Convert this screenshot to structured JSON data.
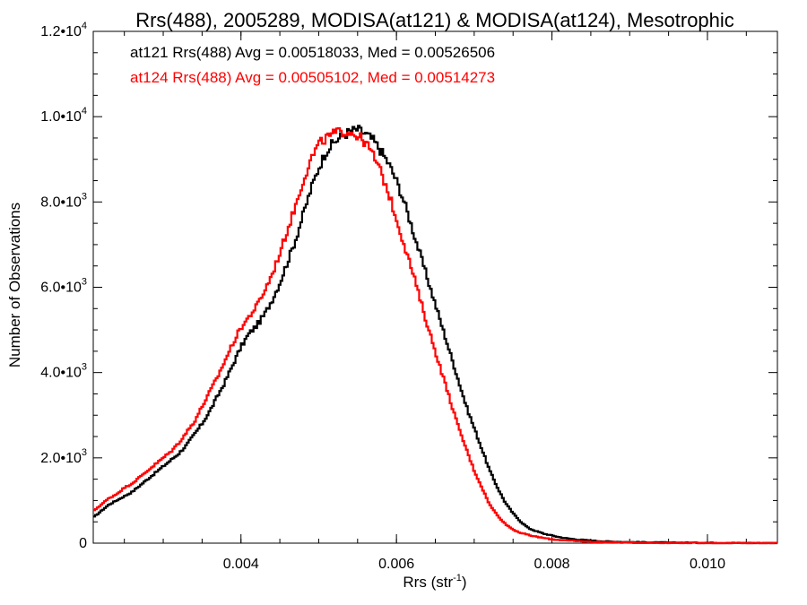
{
  "chart_data": {
    "type": "line",
    "title": "Rrs(488), 2005289, MODISA(at121) & MODISA(at124), Mesotrophic",
    "xlabel": "Rrs (str",
    "xlabel_sup": "-1",
    "xlabel_end": ")",
    "ylabel": "Number of Observations",
    "xlim": [
      0.0021,
      0.0109
    ],
    "ylim": [
      0,
      12000
    ],
    "xticks": [
      {
        "value": 0.004,
        "label": "0.004"
      },
      {
        "value": 0.006,
        "label": "0.006"
      },
      {
        "value": 0.008,
        "label": "0.008"
      },
      {
        "value": 0.01,
        "label": "0.010"
      }
    ],
    "yticks": [
      {
        "value": 0,
        "mant": "0",
        "exp": ""
      },
      {
        "value": 2000,
        "mant": "2.0•10",
        "exp": "3"
      },
      {
        "value": 4000,
        "mant": "4.0•10",
        "exp": "3"
      },
      {
        "value": 6000,
        "mant": "6.0•10",
        "exp": "3"
      },
      {
        "value": 8000,
        "mant": "8.0•10",
        "exp": "3"
      },
      {
        "value": 10000,
        "mant": "1.0•10",
        "exp": "4"
      },
      {
        "value": 12000,
        "mant": "1.2•10",
        "exp": "4"
      }
    ],
    "annotations": [
      "at121 Rrs(488) Avg = 0.00518033, Med = 0.00526506",
      "at124 Rrs(488) Avg = 0.00505102, Med = 0.00514273"
    ],
    "colors": {
      "at121": "#000000",
      "at124": "#ff0000"
    },
    "series": [
      {
        "color": "#000000",
        "x": [
          0.0021,
          0.0022,
          0.0023,
          0.0024,
          0.0025,
          0.0026,
          0.0027,
          0.0028,
          0.0029,
          0.003,
          0.0031,
          0.0032,
          0.0033,
          0.0034,
          0.0035,
          0.0036,
          0.0037,
          0.0038,
          0.0039,
          0.004,
          0.0041,
          0.0042,
          0.0043,
          0.0044,
          0.0045,
          0.0046,
          0.0047,
          0.0048,
          0.0049,
          0.005,
          0.0051,
          0.0052,
          0.0053,
          0.0054,
          0.0055,
          0.0056,
          0.0057,
          0.0058,
          0.0059,
          0.006,
          0.0061,
          0.0062,
          0.0063,
          0.0064,
          0.0065,
          0.0066,
          0.0067,
          0.0068,
          0.0069,
          0.007,
          0.0071,
          0.0072,
          0.0073,
          0.0074,
          0.0075,
          0.0076,
          0.0077,
          0.0078,
          0.0079,
          0.008,
          0.0081,
          0.0082,
          0.0083,
          0.0084,
          0.0085,
          0.0086,
          0.0087,
          0.0088,
          0.0089,
          0.009,
          0.0092,
          0.0094,
          0.0096,
          0.0098,
          0.01,
          0.0103,
          0.0106,
          0.0109
        ],
        "y": [
          600,
          750,
          900,
          1000,
          1100,
          1200,
          1350,
          1500,
          1650,
          1800,
          1950,
          2100,
          2300,
          2550,
          2800,
          3100,
          3450,
          3800,
          4200,
          4600,
          4900,
          5100,
          5350,
          5700,
          6100,
          6600,
          7100,
          7700,
          8300,
          8800,
          9200,
          9400,
          9550,
          9650,
          9700,
          9600,
          9450,
          9200,
          8900,
          8500,
          8000,
          7400,
          6800,
          6200,
          5600,
          5000,
          4400,
          3800,
          3200,
          2700,
          2200,
          1700,
          1300,
          950,
          700,
          500,
          350,
          280,
          220,
          180,
          140,
          110,
          90,
          75,
          60,
          50,
          40,
          35,
          30,
          25,
          20,
          15,
          12,
          10,
          8,
          5,
          3,
          2
        ]
      },
      {
        "color": "#ff0000",
        "x": [
          0.0021,
          0.0022,
          0.0023,
          0.0024,
          0.0025,
          0.0026,
          0.0027,
          0.0028,
          0.0029,
          0.003,
          0.0031,
          0.0032,
          0.0033,
          0.0034,
          0.0035,
          0.0036,
          0.0037,
          0.0038,
          0.0039,
          0.004,
          0.0041,
          0.0042,
          0.0043,
          0.0044,
          0.0045,
          0.0046,
          0.0047,
          0.0048,
          0.0049,
          0.005,
          0.0051,
          0.0052,
          0.0053,
          0.0054,
          0.0055,
          0.0056,
          0.0057,
          0.0058,
          0.0059,
          0.006,
          0.0061,
          0.0062,
          0.0063,
          0.0064,
          0.0065,
          0.0066,
          0.0067,
          0.0068,
          0.0069,
          0.007,
          0.0071,
          0.0072,
          0.0073,
          0.0074,
          0.0075,
          0.0076,
          0.0077,
          0.0078,
          0.0079,
          0.008,
          0.0081,
          0.0082,
          0.0083,
          0.0084,
          0.0085,
          0.0086,
          0.0087,
          0.0088,
          0.0089,
          0.009,
          0.0092,
          0.0094,
          0.0096,
          0.0098,
          0.01,
          0.0103,
          0.0106,
          0.0109
        ],
        "y": [
          750,
          900,
          1050,
          1150,
          1300,
          1400,
          1550,
          1700,
          1850,
          2000,
          2150,
          2350,
          2600,
          2850,
          3200,
          3550,
          3900,
          4300,
          4700,
          5050,
          5300,
          5550,
          5900,
          6300,
          6800,
          7350,
          7900,
          8500,
          9000,
          9350,
          9500,
          9600,
          9650,
          9650,
          9550,
          9400,
          9100,
          8700,
          8200,
          7600,
          7000,
          6400,
          5750,
          5100,
          4500,
          3900,
          3300,
          2700,
          2200,
          1700,
          1300,
          900,
          650,
          450,
          320,
          240,
          190,
          150,
          120,
          90,
          75,
          60,
          50,
          40,
          32,
          28,
          24,
          20,
          17,
          14,
          10,
          7,
          5,
          4,
          3,
          2,
          1,
          1
        ]
      }
    ]
  }
}
